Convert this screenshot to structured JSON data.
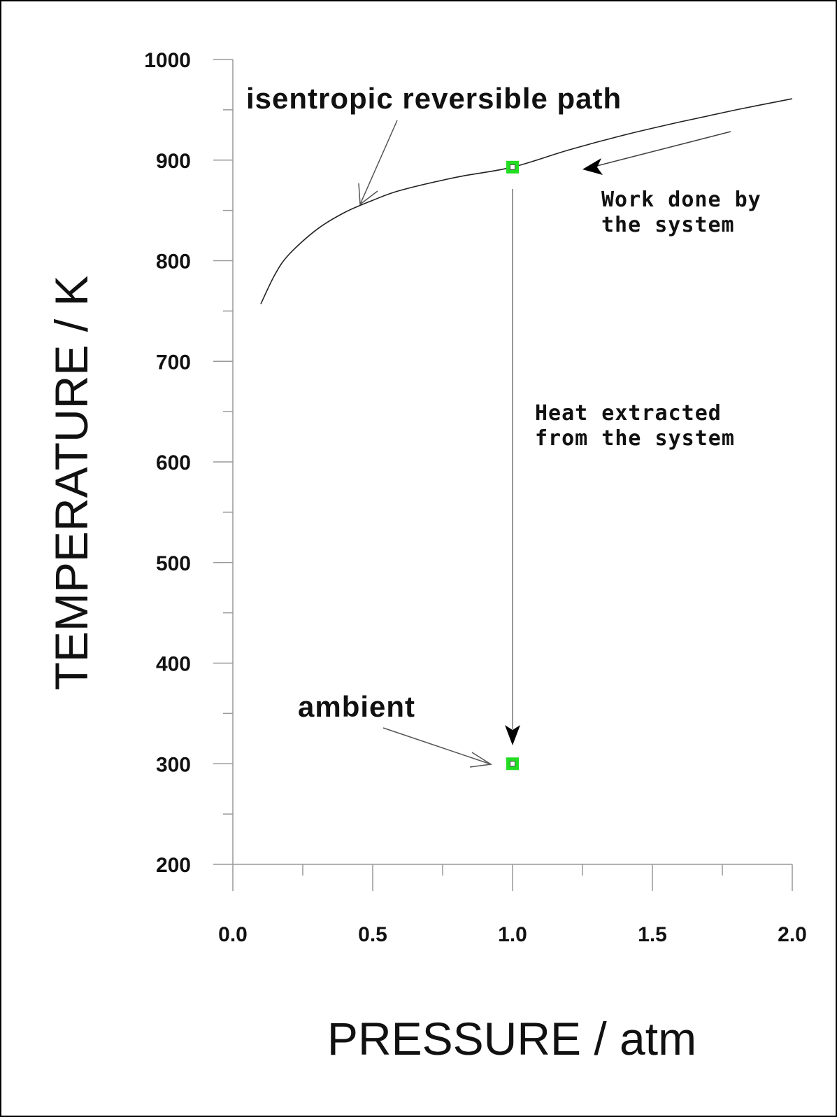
{
  "chart_data": {
    "type": "line",
    "title": "",
    "xlabel": "PRESSURE / atm",
    "ylabel": "TEMPERATURE / K",
    "xlim": [
      0.0,
      2.0
    ],
    "ylim": [
      200,
      1000
    ],
    "x_ticks": [
      "0.0",
      "0.5",
      "1.0",
      "1.5",
      "2.0"
    ],
    "y_ticks": [
      "200",
      "300",
      "400",
      "500",
      "600",
      "700",
      "800",
      "900",
      "1000"
    ],
    "x_minor_step": 0.25,
    "y_minor_step": 50,
    "grid": false,
    "legend": "none",
    "series": [
      {
        "x": [
          0.1,
          0.15,
          0.2,
          0.3,
          0.4,
          0.5,
          0.6,
          0.8,
          1.0,
          1.2,
          1.4,
          1.6,
          1.8,
          2.0
        ],
        "y": [
          757,
          786,
          806,
          831,
          848,
          860,
          870,
          883,
          893,
          910,
          925,
          938,
          950,
          961
        ],
        "color": "#222222"
      }
    ],
    "points": [
      {
        "x": 1.0,
        "y": 893,
        "color": "#22dd22"
      },
      {
        "x": 1.0,
        "y": 300,
        "color": "#22dd22"
      }
    ],
    "annotations": [
      {
        "text": "isentropic reversible path",
        "size": "big"
      },
      {
        "text": "Work done by",
        "size": "small"
      },
      {
        "text": "the system",
        "size": "small"
      },
      {
        "text": "Heat extracted",
        "size": "small"
      },
      {
        "text": "from the system",
        "size": "small"
      },
      {
        "text": "ambient",
        "size": "big"
      }
    ]
  }
}
